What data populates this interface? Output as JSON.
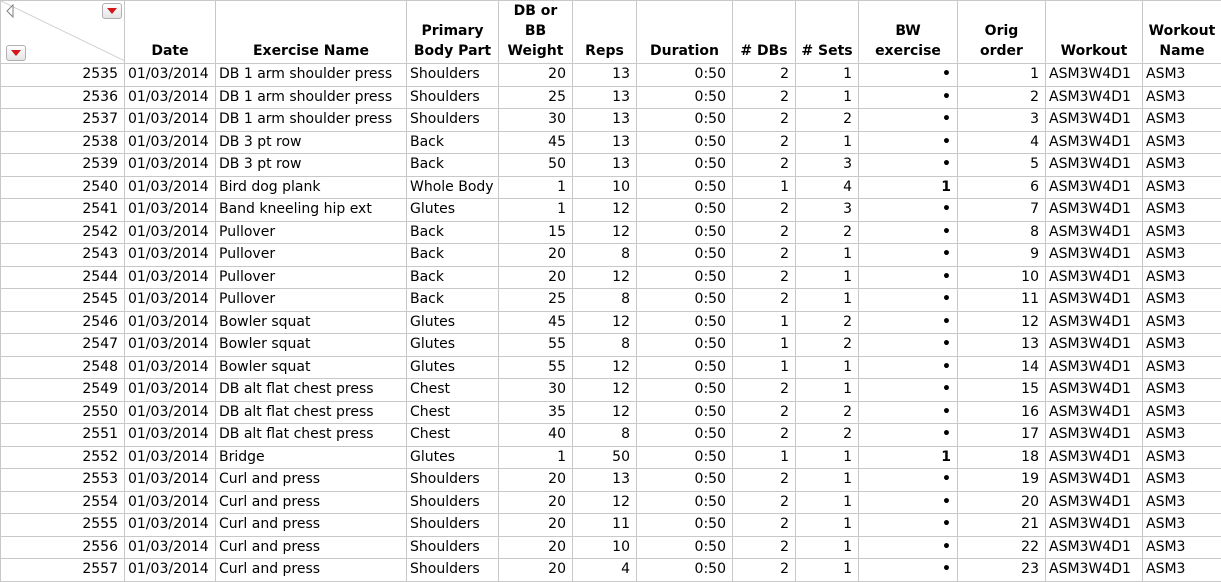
{
  "headers": [
    "Date",
    "Exercise Name",
    "Primary Body Part",
    "DB or BB Weight",
    "Reps",
    "Duration",
    "# DBs",
    "# Sets",
    "BW exercise",
    "Orig order",
    "Workout",
    "Workout Name"
  ],
  "rows": [
    {
      "row": "2535",
      "date": "01/03/2014",
      "exercise": "DB 1 arm shoulder press",
      "body_part": "Shoulders",
      "weight": "20",
      "reps": "13",
      "duration": "0:50",
      "dbs": "2",
      "sets": "1",
      "bw": "•",
      "orig_order": "1",
      "workout": "ASM3W4D1",
      "workout_name": "ASM3"
    },
    {
      "row": "2536",
      "date": "01/03/2014",
      "exercise": "DB 1 arm shoulder press",
      "body_part": "Shoulders",
      "weight": "25",
      "reps": "13",
      "duration": "0:50",
      "dbs": "2",
      "sets": "1",
      "bw": "•",
      "orig_order": "2",
      "workout": "ASM3W4D1",
      "workout_name": "ASM3"
    },
    {
      "row": "2537",
      "date": "01/03/2014",
      "exercise": "DB 1 arm shoulder press",
      "body_part": "Shoulders",
      "weight": "30",
      "reps": "13",
      "duration": "0:50",
      "dbs": "2",
      "sets": "2",
      "bw": "•",
      "orig_order": "3",
      "workout": "ASM3W4D1",
      "workout_name": "ASM3"
    },
    {
      "row": "2538",
      "date": "01/03/2014",
      "exercise": "DB 3 pt row",
      "body_part": "Back",
      "weight": "45",
      "reps": "13",
      "duration": "0:50",
      "dbs": "2",
      "sets": "1",
      "bw": "•",
      "orig_order": "4",
      "workout": "ASM3W4D1",
      "workout_name": "ASM3"
    },
    {
      "row": "2539",
      "date": "01/03/2014",
      "exercise": "DB 3 pt row",
      "body_part": "Back",
      "weight": "50",
      "reps": "13",
      "duration": "0:50",
      "dbs": "2",
      "sets": "3",
      "bw": "•",
      "orig_order": "5",
      "workout": "ASM3W4D1",
      "workout_name": "ASM3"
    },
    {
      "row": "2540",
      "date": "01/03/2014",
      "exercise": "Bird dog plank",
      "body_part": "Whole Body",
      "weight": "1",
      "reps": "10",
      "duration": "0:50",
      "dbs": "1",
      "sets": "4",
      "bw": "1",
      "orig_order": "6",
      "workout": "ASM3W4D1",
      "workout_name": "ASM3"
    },
    {
      "row": "2541",
      "date": "01/03/2014",
      "exercise": "Band kneeling hip ext",
      "body_part": "Glutes",
      "weight": "1",
      "reps": "12",
      "duration": "0:50",
      "dbs": "2",
      "sets": "3",
      "bw": "•",
      "orig_order": "7",
      "workout": "ASM3W4D1",
      "workout_name": "ASM3"
    },
    {
      "row": "2542",
      "date": "01/03/2014",
      "exercise": "Pullover",
      "body_part": "Back",
      "weight": "15",
      "reps": "12",
      "duration": "0:50",
      "dbs": "2",
      "sets": "2",
      "bw": "•",
      "orig_order": "8",
      "workout": "ASM3W4D1",
      "workout_name": "ASM3"
    },
    {
      "row": "2543",
      "date": "01/03/2014",
      "exercise": "Pullover",
      "body_part": "Back",
      "weight": "20",
      "reps": "8",
      "duration": "0:50",
      "dbs": "2",
      "sets": "1",
      "bw": "•",
      "orig_order": "9",
      "workout": "ASM3W4D1",
      "workout_name": "ASM3"
    },
    {
      "row": "2544",
      "date": "01/03/2014",
      "exercise": "Pullover",
      "body_part": "Back",
      "weight": "20",
      "reps": "12",
      "duration": "0:50",
      "dbs": "2",
      "sets": "1",
      "bw": "•",
      "orig_order": "10",
      "workout": "ASM3W4D1",
      "workout_name": "ASM3"
    },
    {
      "row": "2545",
      "date": "01/03/2014",
      "exercise": "Pullover",
      "body_part": "Back",
      "weight": "25",
      "reps": "8",
      "duration": "0:50",
      "dbs": "2",
      "sets": "1",
      "bw": "•",
      "orig_order": "11",
      "workout": "ASM3W4D1",
      "workout_name": "ASM3"
    },
    {
      "row": "2546",
      "date": "01/03/2014",
      "exercise": "Bowler squat",
      "body_part": "Glutes",
      "weight": "45",
      "reps": "12",
      "duration": "0:50",
      "dbs": "1",
      "sets": "2",
      "bw": "•",
      "orig_order": "12",
      "workout": "ASM3W4D1",
      "workout_name": "ASM3"
    },
    {
      "row": "2547",
      "date": "01/03/2014",
      "exercise": "Bowler squat",
      "body_part": "Glutes",
      "weight": "55",
      "reps": "8",
      "duration": "0:50",
      "dbs": "1",
      "sets": "2",
      "bw": "•",
      "orig_order": "13",
      "workout": "ASM3W4D1",
      "workout_name": "ASM3"
    },
    {
      "row": "2548",
      "date": "01/03/2014",
      "exercise": "Bowler squat",
      "body_part": "Glutes",
      "weight": "55",
      "reps": "12",
      "duration": "0:50",
      "dbs": "1",
      "sets": "1",
      "bw": "•",
      "orig_order": "14",
      "workout": "ASM3W4D1",
      "workout_name": "ASM3"
    },
    {
      "row": "2549",
      "date": "01/03/2014",
      "exercise": "DB alt flat chest press",
      "body_part": "Chest",
      "weight": "30",
      "reps": "12",
      "duration": "0:50",
      "dbs": "2",
      "sets": "1",
      "bw": "•",
      "orig_order": "15",
      "workout": "ASM3W4D1",
      "workout_name": "ASM3"
    },
    {
      "row": "2550",
      "date": "01/03/2014",
      "exercise": "DB alt flat chest press",
      "body_part": "Chest",
      "weight": "35",
      "reps": "12",
      "duration": "0:50",
      "dbs": "2",
      "sets": "2",
      "bw": "•",
      "orig_order": "16",
      "workout": "ASM3W4D1",
      "workout_name": "ASM3"
    },
    {
      "row": "2551",
      "date": "01/03/2014",
      "exercise": "DB alt flat chest press",
      "body_part": "Chest",
      "weight": "40",
      "reps": "8",
      "duration": "0:50",
      "dbs": "2",
      "sets": "2",
      "bw": "•",
      "orig_order": "17",
      "workout": "ASM3W4D1",
      "workout_name": "ASM3"
    },
    {
      "row": "2552",
      "date": "01/03/2014",
      "exercise": "Bridge",
      "body_part": "Glutes",
      "weight": "1",
      "reps": "50",
      "duration": "0:50",
      "dbs": "1",
      "sets": "1",
      "bw": "1",
      "orig_order": "18",
      "workout": "ASM3W4D1",
      "workout_name": "ASM3"
    },
    {
      "row": "2553",
      "date": "01/03/2014",
      "exercise": "Curl and press",
      "body_part": "Shoulders",
      "weight": "20",
      "reps": "13",
      "duration": "0:50",
      "dbs": "2",
      "sets": "1",
      "bw": "•",
      "orig_order": "19",
      "workout": "ASM3W4D1",
      "workout_name": "ASM3"
    },
    {
      "row": "2554",
      "date": "01/03/2014",
      "exercise": "Curl and press",
      "body_part": "Shoulders",
      "weight": "20",
      "reps": "12",
      "duration": "0:50",
      "dbs": "2",
      "sets": "1",
      "bw": "•",
      "orig_order": "20",
      "workout": "ASM3W4D1",
      "workout_name": "ASM3"
    },
    {
      "row": "2555",
      "date": "01/03/2014",
      "exercise": "Curl and press",
      "body_part": "Shoulders",
      "weight": "20",
      "reps": "11",
      "duration": "0:50",
      "dbs": "2",
      "sets": "1",
      "bw": "•",
      "orig_order": "21",
      "workout": "ASM3W4D1",
      "workout_name": "ASM3"
    },
    {
      "row": "2556",
      "date": "01/03/2014",
      "exercise": "Curl and press",
      "body_part": "Shoulders",
      "weight": "20",
      "reps": "10",
      "duration": "0:50",
      "dbs": "2",
      "sets": "1",
      "bw": "•",
      "orig_order": "22",
      "workout": "ASM3W4D1",
      "workout_name": "ASM3"
    },
    {
      "row": "2557",
      "date": "01/03/2014",
      "exercise": "Curl and press",
      "body_part": "Shoulders",
      "weight": "20",
      "reps": "4",
      "duration": "0:50",
      "dbs": "2",
      "sets": "1",
      "bw": "•",
      "orig_order": "23",
      "workout": "ASM3W4D1",
      "workout_name": "ASM3"
    }
  ],
  "colors": {
    "grid": "#c8c8c8",
    "dropdown_arrow": "#d01818"
  },
  "icons": {
    "corner_collapse": "triangle-left-icon",
    "column_menu": "red-dropdown-icon",
    "row_menu": "red-dropdown-icon"
  }
}
